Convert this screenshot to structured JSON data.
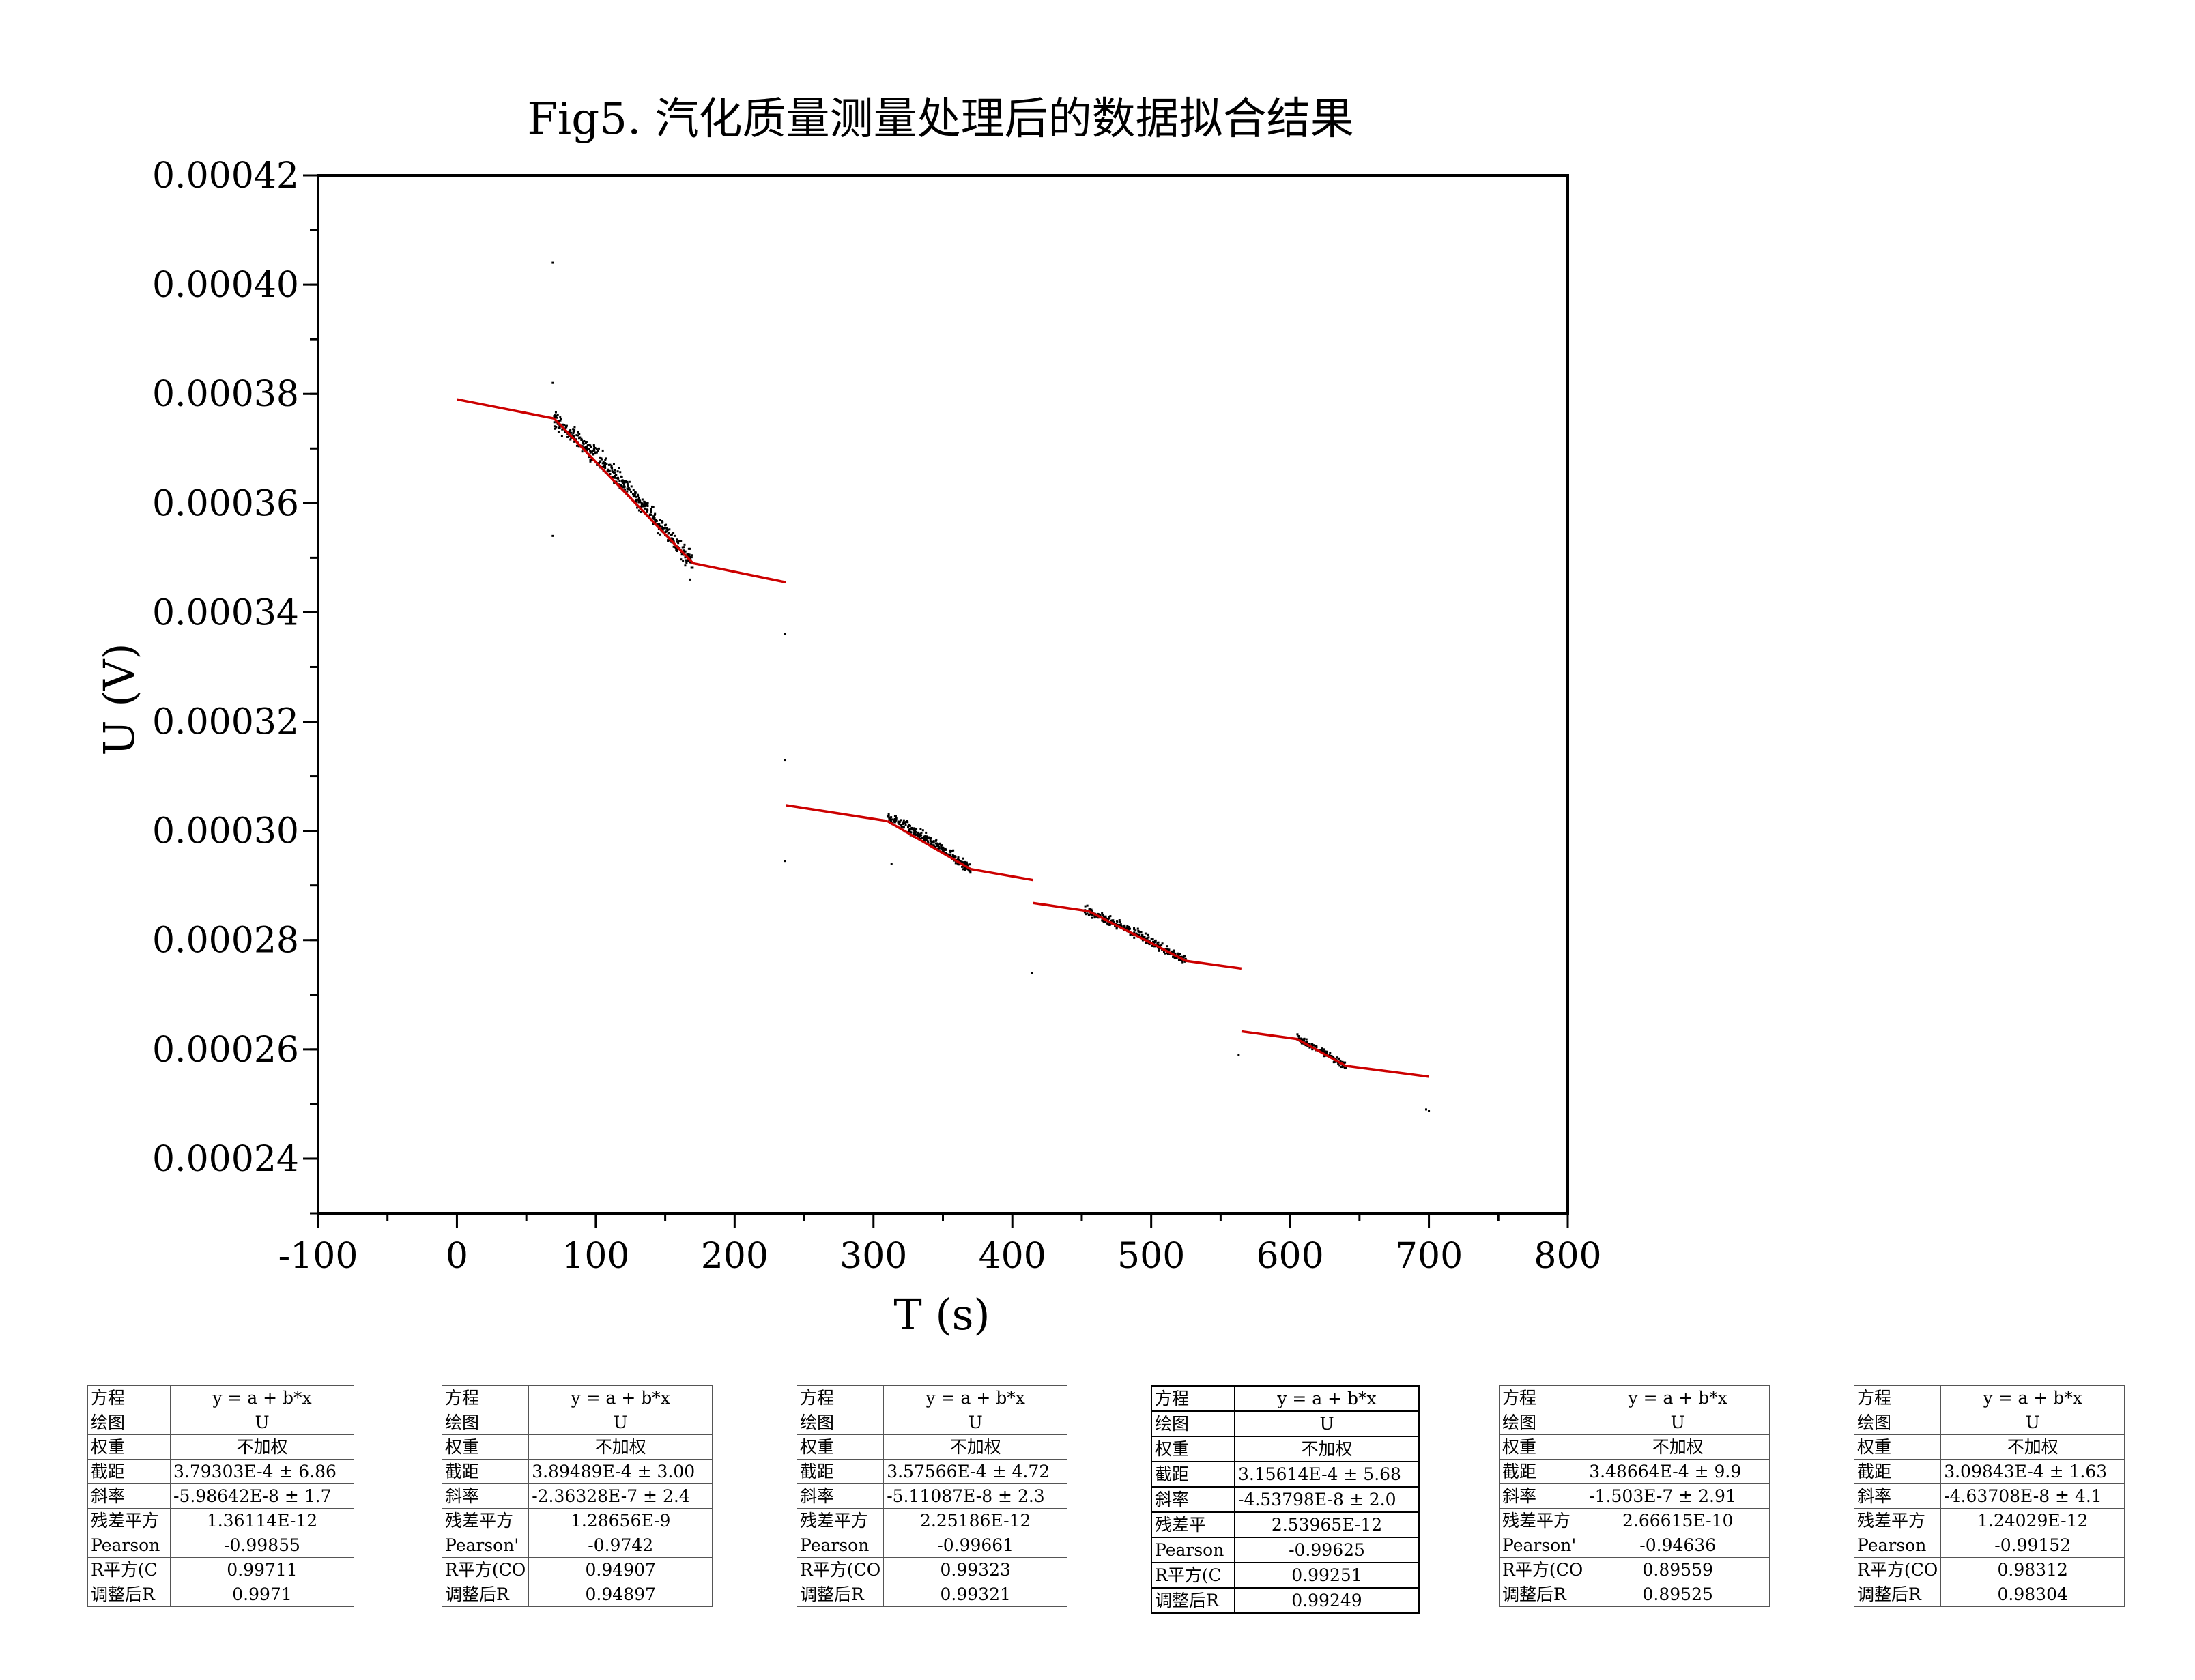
{
  "colors": {
    "fit_line": "#cc0000",
    "points": "#000000",
    "axis": "#000000"
  },
  "chart_data": {
    "type": "scatter",
    "title": "Fig5. 汽化质量测量处理后的数据拟合结果",
    "xlabel": "T (s)",
    "ylabel": "U (V)",
    "xlim": [
      -100,
      800
    ],
    "ylim": [
      0.00023,
      0.00042
    ],
    "xticks": [
      "-100",
      "0",
      "100",
      "200",
      "300",
      "400",
      "500",
      "600",
      "700",
      "800"
    ],
    "yticks": [
      "0.00024",
      "0.00026",
      "0.00028",
      "0.00030",
      "0.00032",
      "0.00034",
      "0.00036",
      "0.00038",
      "0.00040",
      "0.00042"
    ],
    "grid": false,
    "legend": "none",
    "fit_lines": [
      {
        "x": [
          0,
          70
        ],
        "y": [
          0.000379,
          0.0003755
        ]
      },
      {
        "x": [
          70,
          170
        ],
        "y": [
          0.0003755,
          0.000349
        ]
      },
      {
        "x": [
          170,
          237
        ],
        "y": [
          0.000349,
          0.0003455
        ]
      },
      {
        "x": [
          237,
          310
        ],
        "y": [
          0.0003047,
          0.0003018
        ]
      },
      {
        "x": [
          310,
          370
        ],
        "y": [
          0.0003018,
          0.000293
        ]
      },
      {
        "x": [
          370,
          415
        ],
        "y": [
          0.000293,
          0.000291
        ]
      },
      {
        "x": [
          415,
          455
        ],
        "y": [
          0.0002868,
          0.0002853
        ]
      },
      {
        "x": [
          455,
          525
        ],
        "y": [
          0.0002853,
          0.0002762
        ]
      },
      {
        "x": [
          525,
          565
        ],
        "y": [
          0.0002762,
          0.0002748
        ]
      },
      {
        "x": [
          565,
          605
        ],
        "y": [
          0.0002633,
          0.0002619
        ]
      },
      {
        "x": [
          605,
          640
        ],
        "y": [
          0.0002619,
          0.000257
        ]
      },
      {
        "x": [
          640,
          700
        ],
        "y": [
          0.000257,
          0.000255
        ]
      }
    ],
    "scatter_clusters": [
      {
        "x": [
          70,
          170
        ],
        "y": [
          0.0003755,
          0.000349
        ],
        "n": 420,
        "spread": 1.2e-06
      },
      {
        "x": [
          310,
          370
        ],
        "y": [
          0.0003025,
          0.000293
        ],
        "n": 260,
        "spread": 7e-07
      },
      {
        "x": [
          452,
          525
        ],
        "y": [
          0.0002855,
          0.0002762
        ],
        "n": 260,
        "spread": 6e-07
      },
      {
        "x": [
          605,
          640
        ],
        "y": [
          0.000262,
          0.000257
        ],
        "n": 120,
        "spread": 5e-07
      }
    ],
    "outliers": [
      {
        "x": 69,
        "y": 0.000404
      },
      {
        "x": 69,
        "y": 0.000382
      },
      {
        "x": 69,
        "y": 0.000354
      },
      {
        "x": 168,
        "y": 0.000346
      },
      {
        "x": 236,
        "y": 0.000336
      },
      {
        "x": 236,
        "y": 0.000313
      },
      {
        "x": 236,
        "y": 0.0002945
      },
      {
        "x": 313,
        "y": 0.000294
      },
      {
        "x": 414,
        "y": 0.000274
      },
      {
        "x": 563,
        "y": 0.000259
      },
      {
        "x": 698,
        "y": 0.000249
      },
      {
        "x": 700,
        "y": 0.0002488
      }
    ]
  },
  "fit_tables": [
    {
      "rows": [
        [
          "方程",
          "y = a + b*x"
        ],
        [
          "绘图",
          "U"
        ],
        [
          "权重",
          "不加权"
        ],
        [
          "截距",
          "3.79303E-4 ± 6.86"
        ],
        [
          "斜率",
          "-5.98642E-8 ± 1.7"
        ],
        [
          "残差平方",
          "1.36114E-12"
        ],
        [
          "Pearson",
          "-0.99855"
        ],
        [
          "R平方(C",
          "0.99711"
        ],
        [
          "调整后R",
          "0.9971"
        ]
      ]
    },
    {
      "rows": [
        [
          "方程",
          "y = a + b*x"
        ],
        [
          "绘图",
          "U"
        ],
        [
          "权重",
          "不加权"
        ],
        [
          "截距",
          "3.89489E-4 ± 3.00"
        ],
        [
          "斜率",
          "-2.36328E-7 ± 2.4"
        ],
        [
          "残差平方",
          "1.28656E-9"
        ],
        [
          "Pearson'",
          "-0.9742"
        ],
        [
          "R平方(CO",
          "0.94907"
        ],
        [
          "调整后R",
          "0.94897"
        ]
      ]
    },
    {
      "rows": [
        [
          "方程",
          "y = a + b*x"
        ],
        [
          "绘图",
          "U"
        ],
        [
          "权重",
          "不加权"
        ],
        [
          "截距",
          "3.57566E-4 ± 4.72"
        ],
        [
          "斜率",
          "-5.11087E-8 ± 2.3"
        ],
        [
          "残差平方",
          "2.25186E-12"
        ],
        [
          "Pearson",
          "-0.99661"
        ],
        [
          "R平方(CO",
          "0.99323"
        ],
        [
          "调整后R",
          "0.99321"
        ]
      ]
    },
    {
      "rows": [
        [
          "方程",
          "y = a + b*x"
        ],
        [
          "绘图",
          "U"
        ],
        [
          "权重",
          "不加权"
        ],
        [
          "截距",
          "3.15614E-4 ± 5.68"
        ],
        [
          "斜率",
          "-4.53798E-8 ± 2.0"
        ],
        [
          "残差平",
          "2.53965E-12"
        ],
        [
          "Pearson",
          "-0.99625"
        ],
        [
          "R平方(C",
          "0.99251"
        ],
        [
          "调整后R",
          "0.99249"
        ]
      ]
    },
    {
      "rows": [
        [
          "方程",
          "y = a + b*x"
        ],
        [
          "绘图",
          "U"
        ],
        [
          "权重",
          "不加权"
        ],
        [
          "截距",
          "3.48664E-4 ± 9.9"
        ],
        [
          "斜率",
          "-1.503E-7 ± 2.91"
        ],
        [
          "残差平方",
          "2.66615E-10"
        ],
        [
          "Pearson'",
          "-0.94636"
        ],
        [
          "R平方(CO",
          "0.89559"
        ],
        [
          "调整后R",
          "0.89525"
        ]
      ]
    },
    {
      "rows": [
        [
          "方程",
          "y = a + b*x"
        ],
        [
          "绘图",
          "U"
        ],
        [
          "权重",
          "不加权"
        ],
        [
          "截距",
          "3.09843E-4 ± 1.63"
        ],
        [
          "斜率",
          "-4.63708E-8 ± 4.1"
        ],
        [
          "残差平方",
          "1.24029E-12"
        ],
        [
          "Pearson",
          "-0.99152"
        ],
        [
          "R平方(CO",
          "0.98312"
        ],
        [
          "调整后R",
          "0.98304"
        ]
      ]
    }
  ]
}
